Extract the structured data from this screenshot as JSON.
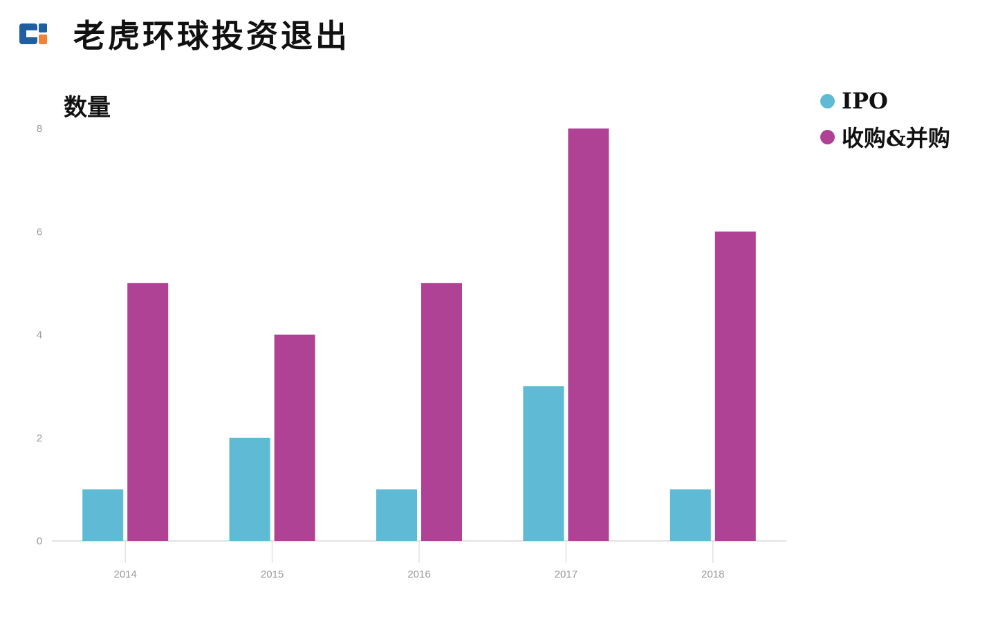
{
  "title": "老虎环球投资退出",
  "colors": {
    "ipo": "#5fbad6",
    "ma": "#b04295",
    "logo_blue": "#1f5fa0",
    "logo_orange": "#f0833a"
  },
  "chart_data": {
    "type": "bar",
    "title": "老虎环球投资退出",
    "ylabel": "数量",
    "xlabel": "",
    "categories": [
      "2014",
      "2015",
      "2016",
      "2017",
      "2018"
    ],
    "series": [
      {
        "name": "IPO",
        "values": [
          1,
          2,
          1,
          3,
          1
        ]
      },
      {
        "name": "收购&并购",
        "values": [
          5,
          4,
          5,
          8,
          6
        ]
      }
    ],
    "yticks": [
      "0",
      "2",
      "4",
      "6",
      "8"
    ],
    "ylim": [
      0,
      8
    ],
    "grid": false,
    "legend_position": "top-right"
  }
}
